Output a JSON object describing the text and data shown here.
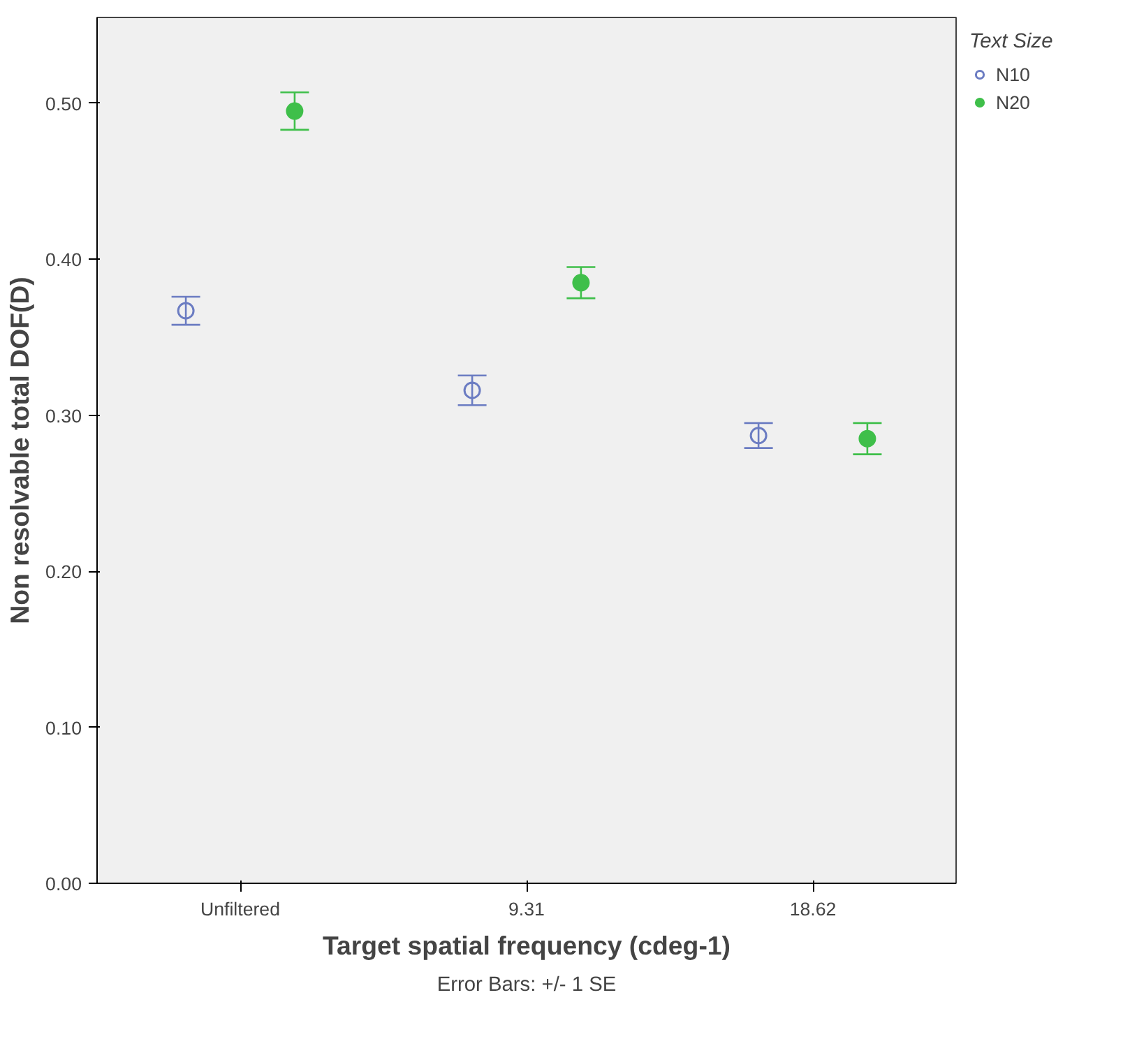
{
  "chart_data": {
    "type": "scatter",
    "xlabel": "Target spatial frequency (cdeg-1)",
    "ylabel": "Non resolvable total DOF(D)",
    "legend_title": "Text Size",
    "annotations": [
      "Error Bars: +/- 1 SE"
    ],
    "categories": [
      "Unfiltered",
      "9.31",
      "18.62"
    ],
    "ylim": [
      0,
      0.555
    ],
    "yticks": [
      {
        "value": 0,
        "label": "0.00"
      },
      {
        "value": 0.1,
        "label": "0.10"
      },
      {
        "value": 0.2,
        "label": "0.20"
      },
      {
        "value": 0.3,
        "label": "0.30"
      },
      {
        "value": 0.4,
        "label": "0.40"
      },
      {
        "value": 0.5,
        "label": "0.50"
      }
    ],
    "grid": false,
    "legend": "top right",
    "marker": "circle",
    "series": [
      {
        "name": "N10",
        "color": "#6b7cc2",
        "values": [
          0.367,
          0.316,
          0.287
        ],
        "errors": [
          0.009,
          0.0095,
          0.008
        ]
      },
      {
        "name": "N20",
        "color": "#3fbf4a",
        "values": [
          0.495,
          0.385,
          0.285
        ],
        "errors": [
          0.012,
          0.01,
          0.01
        ]
      }
    ]
  }
}
